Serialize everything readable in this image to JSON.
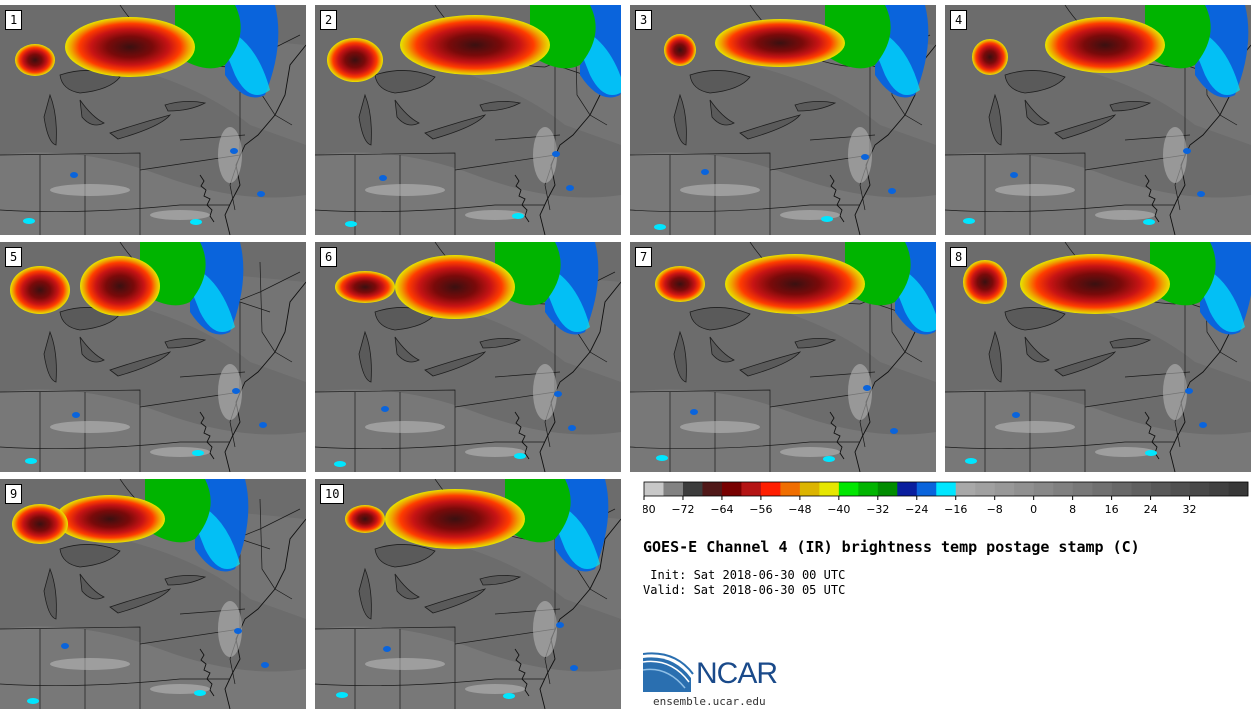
{
  "panels": [
    {
      "label": "1"
    },
    {
      "label": "2"
    },
    {
      "label": "3"
    },
    {
      "label": "4"
    },
    {
      "label": "5"
    },
    {
      "label": "6"
    },
    {
      "label": "7"
    },
    {
      "label": "8"
    },
    {
      "label": "9"
    },
    {
      "label": "10"
    }
  ],
  "colorbar": {
    "min": -80,
    "max": 40,
    "step": 4,
    "tick_labels": [
      "−80",
      "−72",
      "−64",
      "−56",
      "−48",
      "−40",
      "−32",
      "−24",
      "−16",
      "−8",
      "0",
      "8",
      "16",
      "24",
      "32"
    ],
    "colors": [
      "#c8c8c8",
      "#828282",
      "#3c3c3c",
      "#501818",
      "#780000",
      "#b41414",
      "#ff1e00",
      "#f06e00",
      "#dcb400",
      "#e6e600",
      "#00e600",
      "#00b400",
      "#008c00",
      "#0a1e9e",
      "#0a64dc",
      "#00e6ff",
      "#a8a8a8",
      "#a0a0a0",
      "#989898",
      "#909090",
      "#888888",
      "#808080",
      "#787878",
      "#707070",
      "#686868",
      "#606060",
      "#585858",
      "#505050",
      "#484848",
      "#404040",
      "#383838"
    ]
  },
  "title": "GOES-E Channel 4 (IR) brightness temp postage stamp (C)",
  "init": " Init: Sat 2018-06-30 00 UTC",
  "valid": "Valid: Sat 2018-06-30 05 UTC",
  "logo": {
    "text": "NCAR",
    "site": "ensemble.ucar.edu"
  }
}
